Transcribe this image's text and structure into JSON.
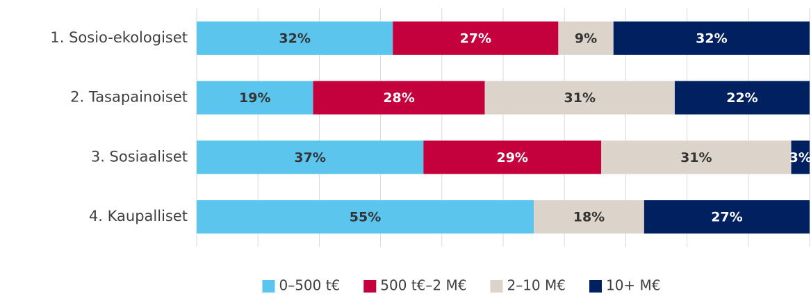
{
  "chart_data": {
    "type": "stacked-bar-horizontal",
    "categories": [
      "1. Sosio-ekologiset",
      "2. Tasapainoiset",
      "3. Sosiaaliset",
      "4. Kaupalliset"
    ],
    "series": [
      {
        "name": "0–500 t€",
        "color": "#5bc5ee",
        "label_color": "#333333",
        "values": [
          32,
          19,
          37,
          55
        ],
        "value_labels": [
          "32%",
          "19%",
          "37%",
          "55%"
        ]
      },
      {
        "name": "500 t€–2 M€",
        "color": "#c4003d",
        "label_color": "#ffffff",
        "values": [
          27,
          28,
          29,
          null
        ],
        "value_labels": [
          "27%",
          "28%",
          "29%",
          null
        ]
      },
      {
        "name": "2–10 M€",
        "color": "#dcd3cb",
        "label_color": "#333333",
        "values": [
          9,
          31,
          31,
          18
        ],
        "value_labels": [
          "9%",
          "31%",
          "31%",
          "18%"
        ]
      },
      {
        "name": "10+ M€",
        "color": "#002060",
        "label_color": "#ffffff",
        "values": [
          32,
          22,
          3,
          27
        ],
        "value_labels": [
          "32%",
          "22%",
          "3%",
          "27%"
        ]
      }
    ],
    "xlim": [
      0,
      100
    ],
    "xticks": [
      0,
      10,
      20,
      30,
      40,
      50,
      60,
      70,
      80,
      90,
      100
    ],
    "grid": true,
    "legend": "bottom"
  }
}
